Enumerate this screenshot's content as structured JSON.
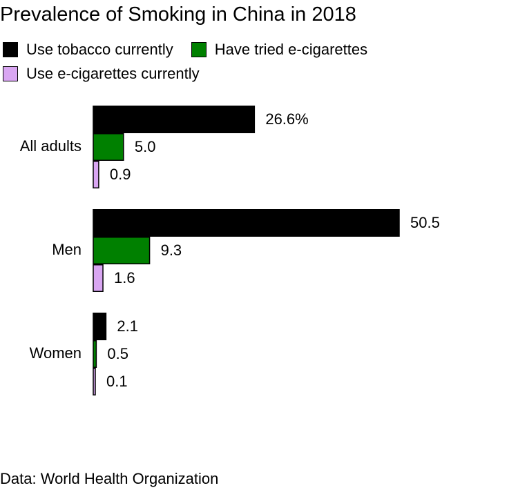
{
  "title": "Prevalence of Smoking in China in 2018",
  "source": "Data: World Health Organization",
  "chart_data": {
    "type": "bar",
    "orientation": "horizontal",
    "categories": [
      "All adults",
      "Men",
      "Women"
    ],
    "series": [
      {
        "name": "Use tobacco currently",
        "color": "#000000",
        "values": [
          26.6,
          50.5,
          2.1
        ]
      },
      {
        "name": "Have tried e-cigarettes",
        "color": "#008000",
        "values": [
          5.0,
          9.3,
          0.5
        ]
      },
      {
        "name": "Use e-cigarettes currently",
        "color": "#d9a6f2",
        "values": [
          0.9,
          1.6,
          0.1
        ]
      }
    ],
    "data_labels": [
      [
        "26.6%",
        "5.0",
        "0.9"
      ],
      [
        "50.5",
        "9.3",
        "1.6"
      ],
      [
        "2.1",
        "0.5",
        "0.1"
      ]
    ],
    "xlim": [
      0,
      50.5
    ],
    "grid": false,
    "legend_position": "top-left"
  }
}
